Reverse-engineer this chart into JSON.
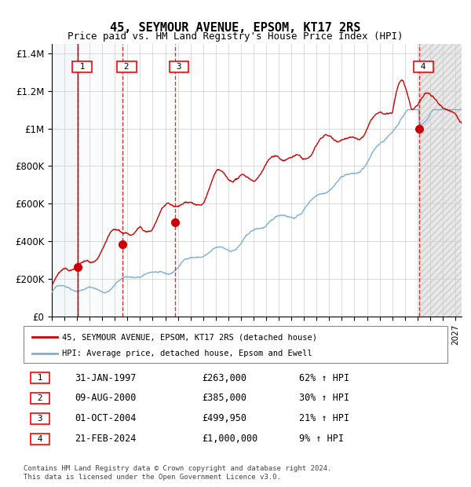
{
  "title": "45, SEYMOUR AVENUE, EPSOM, KT17 2RS",
  "subtitle": "Price paid vs. HM Land Registry's House Price Index (HPI)",
  "transactions": [
    {
      "num": 1,
      "date": "1997-01-31",
      "price": 263000,
      "pct": "62%",
      "x_year": 1997.08
    },
    {
      "num": 2,
      "date": "2000-08-09",
      "price": 385000,
      "pct": "30%",
      "x_year": 2000.61
    },
    {
      "num": 3,
      "date": "2004-10-01",
      "price": 499950,
      "pct": "21%",
      "x_year": 2004.75
    },
    {
      "num": 4,
      "date": "2024-02-21",
      "price": 1000000,
      "pct": "9%",
      "x_year": 2024.14
    }
  ],
  "xmin": 1995.0,
  "xmax": 2027.5,
  "ymin": 0,
  "ymax": 1450000,
  "yticks": [
    0,
    200000,
    400000,
    600000,
    800000,
    1000000,
    1200000,
    1400000
  ],
  "ylabel_map": {
    "0": "£0",
    "200000": "£200K",
    "400000": "£400K",
    "600000": "£600K",
    "800000": "£800K",
    "1000000": "£1M",
    "1200000": "£1.2M",
    "1400000": "£1.4M"
  },
  "hpi_color": "#7bafd4",
  "price_color": "#cc0000",
  "dot_color": "#cc0000",
  "shade_color_blue": "#dce9f5",
  "shade_color_hatch": "#e0e0e0",
  "grid_color": "#cccccc",
  "background_color": "#ffffff",
  "legend_label_price": "45, SEYMOUR AVENUE, EPSOM, KT17 2RS (detached house)",
  "legend_label_hpi": "HPI: Average price, detached house, Epsom and Ewell",
  "footer": "Contains HM Land Registry data © Crown copyright and database right 2024.\nThis data is licensed under the Open Government Licence v3.0.",
  "table_rows": [
    {
      "num": 1,
      "date_str": "31-JAN-1997",
      "price_str": "£263,000",
      "pct_str": "62% ↑ HPI"
    },
    {
      "num": 2,
      "date_str": "09-AUG-2000",
      "price_str": "£385,000",
      "pct_str": "30% ↑ HPI"
    },
    {
      "num": 3,
      "date_str": "01-OCT-2004",
      "price_str": "£499,950",
      "pct_str": "21% ↑ HPI"
    },
    {
      "num": 4,
      "date_str": "21-FEB-2024",
      "price_str": "£1,000,000",
      "pct_str": "9% ↑ HPI"
    }
  ]
}
